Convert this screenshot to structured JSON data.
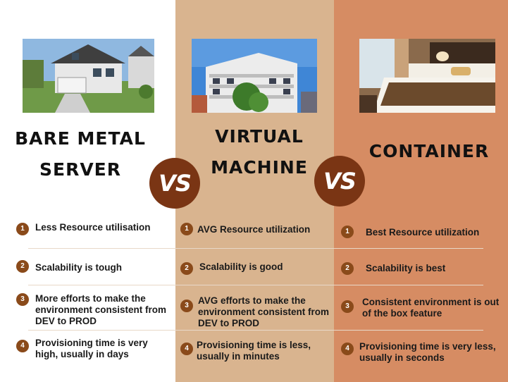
{
  "columns": [
    {
      "heading_line1": "BARE METAL",
      "heading_line2": "SERVER",
      "image": "house-photo",
      "items": [
        {
          "num": "1",
          "text": "Less Resource utilisation"
        },
        {
          "num": "2",
          "text": "Scalability is tough"
        },
        {
          "num": "3",
          "text": "More efforts to make the environment consistent from DEV to PROD"
        },
        {
          "num": "4",
          "text": "Provisioning time is very high, usually in days"
        }
      ]
    },
    {
      "heading_line1": "VIRTUAL",
      "heading_line2": "MACHINE",
      "image": "apartment-building-photo",
      "items": [
        {
          "num": "1",
          "text": "AVG Resource utilization"
        },
        {
          "num": "2",
          "text": "Scalability is good"
        },
        {
          "num": "3",
          "text": "AVG efforts to make the environment consistent from DEV to PROD"
        },
        {
          "num": "4",
          "text": "Provisioning time is less, usually in minutes"
        }
      ]
    },
    {
      "heading_line1": "CONTAINER",
      "heading_line2": "",
      "image": "hotel-bedroom-photo",
      "items": [
        {
          "num": "1",
          "text": "Best Resource utilization"
        },
        {
          "num": "2",
          "text": "Scalability is best"
        },
        {
          "num": "3",
          "text": "Consistent environment is out of the box feature"
        },
        {
          "num": "4",
          "text": "Provisioning time is very less, usually in seconds"
        }
      ]
    }
  ],
  "vs_badges": [
    "VS",
    "VS"
  ],
  "colors": {
    "column1_bg": "#ffffff",
    "column2_bg": "#d9b48f",
    "column3_bg": "#d68c63",
    "vs_badge": "#7a3514",
    "number_badge": "#8a4a1a"
  }
}
